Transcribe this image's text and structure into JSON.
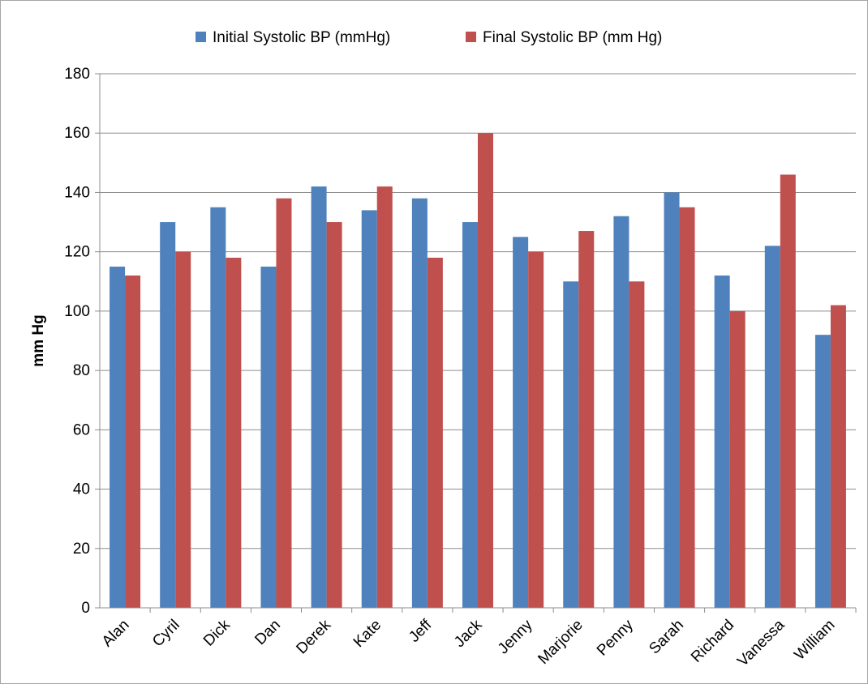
{
  "chart_data": {
    "type": "bar",
    "title": "",
    "xlabel": "",
    "ylabel": "mm Hg",
    "ylim": [
      0,
      180
    ],
    "yticks": [
      0,
      20,
      40,
      60,
      80,
      100,
      120,
      140,
      160,
      180
    ],
    "grid": true,
    "legend_position": "top",
    "categories": [
      "Alan",
      "Cyril",
      "Dick",
      "Dan",
      "Derek",
      "Kate",
      "Jeff",
      "Jack",
      "Jenny",
      "Marjorie",
      "Penny",
      "Sarah",
      "Richard",
      "Vanessa",
      "William"
    ],
    "series": [
      {
        "name": "Initial Systolic BP (mmHg)",
        "color": "#4f81bd",
        "values": [
          115,
          130,
          135,
          115,
          142,
          134,
          138,
          130,
          125,
          110,
          132,
          140,
          112,
          122,
          92
        ]
      },
      {
        "name": "Final Systolic BP (mm Hg)",
        "color": "#c0504d",
        "values": [
          112,
          120,
          118,
          138,
          130,
          142,
          118,
          160,
          120,
          127,
          110,
          135,
          100,
          146,
          102
        ]
      }
    ]
  }
}
